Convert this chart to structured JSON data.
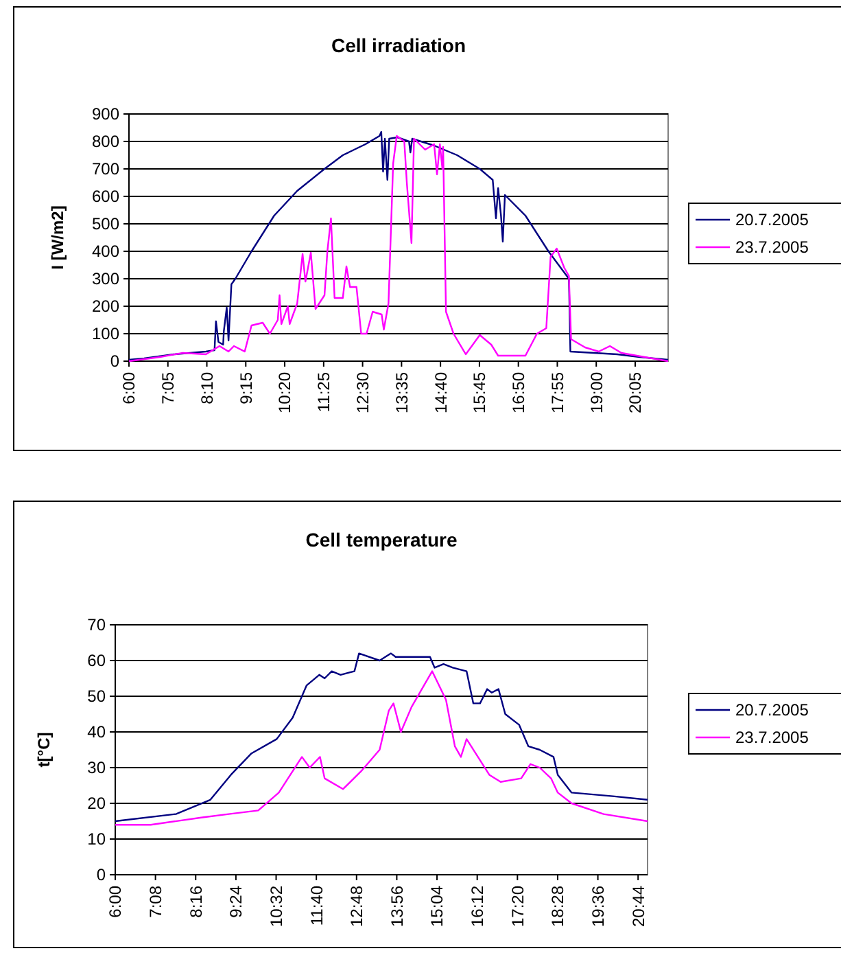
{
  "chart_data": [
    {
      "type": "line",
      "title": "Cell irradiation",
      "ylabel": "I [W/m2]",
      "xlim": [
        6,
        21
      ],
      "ylim": [
        0,
        900
      ],
      "yticks": [
        0,
        100,
        200,
        300,
        400,
        500,
        600,
        700,
        800,
        900
      ],
      "xticks": [
        {
          "value": 6,
          "label": "6:00"
        },
        {
          "value": 7.0833,
          "label": "7:05"
        },
        {
          "value": 8.1667,
          "label": "8:10"
        },
        {
          "value": 9.25,
          "label": "9:15"
        },
        {
          "value": 10.3333,
          "label": "10:20"
        },
        {
          "value": 11.4167,
          "label": "11:25"
        },
        {
          "value": 12.5,
          "label": "12:30"
        },
        {
          "value": 13.5833,
          "label": "13:35"
        },
        {
          "value": 14.6667,
          "label": "14:40"
        },
        {
          "value": 15.75,
          "label": "15:45"
        },
        {
          "value": 16.8333,
          "label": "16:50"
        },
        {
          "value": 17.9167,
          "label": "17:55"
        },
        {
          "value": 19,
          "label": "19:00"
        },
        {
          "value": 20.0833,
          "label": "20:05"
        }
      ],
      "grid": "y",
      "legend": "right",
      "line_style": "solid",
      "marker": "none",
      "series": [
        {
          "name": "20.7.2005",
          "color": "#000080",
          "x": [
            6,
            6.42,
            7.25,
            8.14,
            8.38,
            8.42,
            8.49,
            8.62,
            8.64,
            8.72,
            8.77,
            8.85,
            8.96,
            9.41,
            10.04,
            10.68,
            11.44,
            11.95,
            12.58,
            12.97,
            13.02,
            13.07,
            13.12,
            13.19,
            13.24,
            13.47,
            13.79,
            13.83,
            13.88,
            14.49,
            15.13,
            15.76,
            16.12,
            16.21,
            16.27,
            16.35,
            16.4,
            16.46,
            17.03,
            17.67,
            18.24,
            18.28,
            18.94,
            19.58,
            20.21,
            21
          ],
          "values": [
            5,
            10,
            25,
            35,
            40,
            145,
            70,
            60,
            110,
            195,
            75,
            280,
            300,
            400,
            530,
            620,
            700,
            750,
            790,
            820,
            835,
            690,
            810,
            660,
            810,
            815,
            800,
            760,
            810,
            785,
            750,
            700,
            660,
            520,
            630,
            530,
            435,
            605,
            530,
            400,
            300,
            35,
            30,
            25,
            15,
            5
          ]
        },
        {
          "name": "23.7.2005",
          "color": "#ff00ff",
          "x": [
            6,
            6.86,
            7.5,
            8.14,
            8.52,
            8.77,
            8.92,
            9.22,
            9.41,
            9.72,
            9.92,
            10.14,
            10.19,
            10.24,
            10.42,
            10.47,
            10.68,
            10.83,
            10.91,
            11.06,
            11.19,
            11.44,
            11.52,
            11.62,
            11.72,
            11.95,
            12.05,
            12.15,
            12.33,
            12.46,
            12.61,
            12.78,
            13.03,
            13.09,
            13.22,
            13.35,
            13.45,
            13.66,
            13.73,
            13.86,
            13.93,
            14.24,
            14.49,
            14.57,
            14.65,
            14.72,
            14.74,
            14.82,
            15.03,
            15.37,
            15.76,
            16.08,
            16.27,
            17.03,
            17.35,
            17.61,
            17.73,
            17.9,
            18.11,
            18.24,
            18.3,
            18.69,
            19.07,
            19.38,
            19.7,
            20.34,
            21
          ],
          "values": [
            0,
            15,
            30,
            25,
            55,
            35,
            55,
            35,
            130,
            140,
            100,
            150,
            240,
            135,
            200,
            135,
            210,
            390,
            290,
            395,
            190,
            240,
            400,
            520,
            230,
            230,
            345,
            270,
            270,
            100,
            100,
            180,
            170,
            115,
            210,
            720,
            820,
            800,
            650,
            430,
            810,
            770,
            790,
            680,
            790,
            700,
            780,
            180,
            100,
            25,
            95,
            60,
            20,
            20,
            100,
            120,
            380,
            410,
            340,
            310,
            80,
            50,
            35,
            55,
            30,
            15,
            0
          ]
        }
      ]
    },
    {
      "type": "line",
      "title": "Cell temperature",
      "ylabel": "t[°C]",
      "xlim": [
        6,
        21
      ],
      "ylim": [
        0,
        70
      ],
      "yticks": [
        0,
        10,
        20,
        30,
        40,
        50,
        60,
        70
      ],
      "xticks": [
        {
          "value": 6,
          "label": "6:00"
        },
        {
          "value": 7.1333,
          "label": "7:08"
        },
        {
          "value": 8.2667,
          "label": "8:16"
        },
        {
          "value": 9.4,
          "label": "9:24"
        },
        {
          "value": 10.5333,
          "label": "10:32"
        },
        {
          "value": 11.6667,
          "label": "11:40"
        },
        {
          "value": 12.8,
          "label": "12:48"
        },
        {
          "value": 13.9333,
          "label": "13:56"
        },
        {
          "value": 15.0667,
          "label": "15:04"
        },
        {
          "value": 16.2,
          "label": "16:12"
        },
        {
          "value": 17.3333,
          "label": "17:20"
        },
        {
          "value": 18.4667,
          "label": "18:28"
        },
        {
          "value": 19.6,
          "label": "19:36"
        },
        {
          "value": 20.7333,
          "label": "20:44"
        }
      ],
      "grid": "y",
      "legend": "right",
      "line_style": "solid",
      "marker": "none",
      "series": [
        {
          "name": "20.7.2005",
          "color": "#000080",
          "x": [
            6,
            7.71,
            8.68,
            9.26,
            9.84,
            10.55,
            11,
            11.39,
            11.75,
            11.9,
            12.1,
            12.35,
            12.74,
            12.87,
            13.45,
            13.77,
            13.9,
            14.35,
            14.87,
            15,
            15.25,
            15.51,
            15.9,
            16.09,
            16.28,
            16.48,
            16.61,
            16.8,
            16.99,
            17.38,
            17.64,
            17.96,
            18.35,
            18.47,
            18.86,
            20.02,
            21
          ],
          "values": [
            15,
            17,
            21,
            28,
            34,
            38,
            44,
            53,
            56,
            55,
            57,
            56,
            57,
            62,
            60,
            62,
            61,
            61,
            61,
            58,
            59,
            58,
            57,
            48,
            48,
            52,
            51,
            52,
            45,
            42,
            36,
            35,
            33,
            28,
            23,
            22,
            21
          ]
        },
        {
          "name": "23.7.2005",
          "color": "#ff00ff",
          "x": [
            6,
            7,
            8.42,
            9.2,
            10.03,
            10.61,
            11,
            11.26,
            11.48,
            11.77,
            11.9,
            12.42,
            12.93,
            13.45,
            13.71,
            13.84,
            14.05,
            14.35,
            14.93,
            15.32,
            15.57,
            15.74,
            15.9,
            16.03,
            16.54,
            16.86,
            17.44,
            17.7,
            17.96,
            18.28,
            18.47,
            18.86,
            19.76,
            21
          ],
          "values": [
            14,
            14,
            16,
            17,
            18,
            23,
            29,
            33,
            30,
            33,
            27,
            24,
            29,
            35,
            46,
            48,
            40,
            47,
            57,
            49,
            36,
            33,
            38,
            36,
            28,
            26,
            27,
            31,
            30,
            27,
            23,
            20,
            17,
            15
          ]
        }
      ]
    }
  ]
}
